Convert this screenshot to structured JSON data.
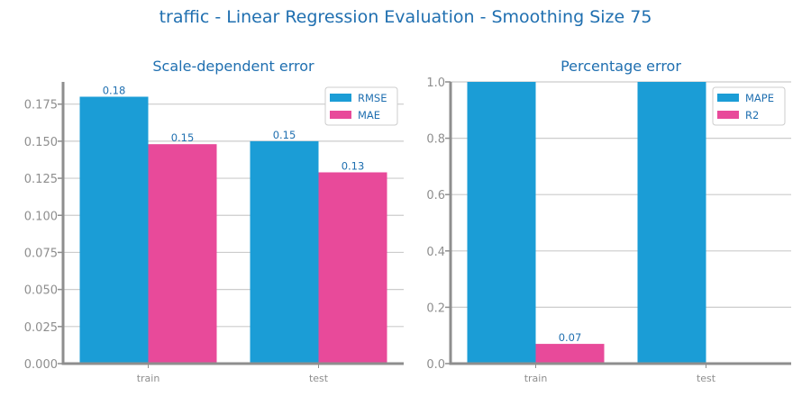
{
  "title": "traffic - Linear Regression Evaluation - Smoothing Size 75",
  "colors": {
    "series1": "#1b9dd6",
    "series2": "#e84a9a",
    "title": "#1f6fb0",
    "axis": "#8e8e8e",
    "grid": "#cccccc"
  },
  "chart_data": [
    {
      "type": "bar",
      "title": "Scale-dependent error",
      "categories": [
        "train",
        "test"
      ],
      "series": [
        {
          "name": "RMSE",
          "values": [
            0.18,
            0.15
          ],
          "value_labels": [
            "0.18",
            "0.15"
          ]
        },
        {
          "name": "MAE",
          "values": [
            0.148,
            0.129
          ],
          "value_labels": [
            "0.15",
            "0.13"
          ]
        }
      ],
      "ylim": [
        0,
        0.19
      ],
      "yticks": [
        0.0,
        0.025,
        0.05,
        0.075,
        0.1,
        0.125,
        0.15,
        0.175
      ],
      "ytick_labels": [
        "0.000",
        "0.025",
        "0.050",
        "0.075",
        "0.100",
        "0.125",
        "0.150",
        "0.175"
      ],
      "grid": true,
      "legend": "top-right"
    },
    {
      "type": "bar",
      "title": "Percentage error",
      "categories": [
        "train",
        "test"
      ],
      "series": [
        {
          "name": "MAPE",
          "values": [
            1.0,
            1.0
          ],
          "value_labels": [
            "",
            ""
          ]
        },
        {
          "name": "R2",
          "values": [
            0.07,
            0.0
          ],
          "value_labels": [
            "0.07",
            ""
          ]
        }
      ],
      "ylim": [
        0,
        1.0
      ],
      "yticks": [
        0.0,
        0.2,
        0.4,
        0.6,
        0.8,
        1.0
      ],
      "ytick_labels": [
        "0.0",
        "0.2",
        "0.4",
        "0.6",
        "0.8",
        "1.0"
      ],
      "grid": true,
      "legend": "top-right"
    }
  ]
}
